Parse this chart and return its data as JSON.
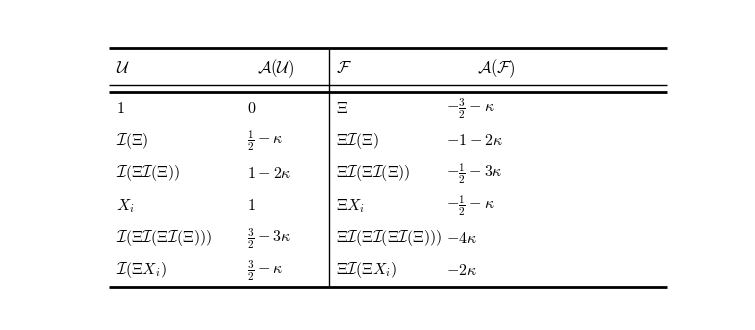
{
  "col_headers": [
    "$\\mathcal{U}$",
    "$\\mathcal{A}(\\mathcal{U})$",
    "$\\mathcal{F}$",
    "$\\mathcal{A}(\\mathcal{F})$"
  ],
  "rows": [
    [
      "$\\mathbf{1}$",
      "$0$",
      "$\\Xi$",
      "$-\\frac{3}{2} - \\kappa$"
    ],
    [
      "$\\mathcal{I}(\\Xi)$",
      "$\\frac{1}{2} - \\kappa$",
      "$\\Xi\\mathcal{I}(\\Xi)$",
      "$-1 - 2\\kappa$"
    ],
    [
      "$\\mathcal{I}(\\Xi\\mathcal{I}(\\Xi))$",
      "$1 - 2\\kappa$",
      "$\\Xi\\mathcal{I}(\\Xi\\mathcal{I}(\\Xi))$",
      "$-\\frac{1}{2} - 3\\kappa$"
    ],
    [
      "$X_i$",
      "$1$",
      "$\\Xi X_i$",
      "$-\\frac{1}{2} - \\kappa$"
    ],
    [
      "$\\mathcal{I}(\\Xi\\mathcal{I}(\\Xi\\mathcal{I}(\\Xi)))$",
      "$\\frac{3}{2} - 3\\kappa$",
      "$\\Xi\\mathcal{I}(\\Xi\\mathcal{I}(\\Xi\\mathcal{I}(\\Xi)))$",
      "$-4\\kappa$"
    ],
    [
      "$\\mathcal{I}(\\Xi X_i)$",
      "$\\frac{3}{2} - \\kappa$",
      "$\\Xi\\mathcal{I}(\\Xi X_i)$",
      "$-2\\kappa$"
    ]
  ],
  "background_color": "#ffffff",
  "fontsize": 11.5,
  "header_fontsize": 12
}
